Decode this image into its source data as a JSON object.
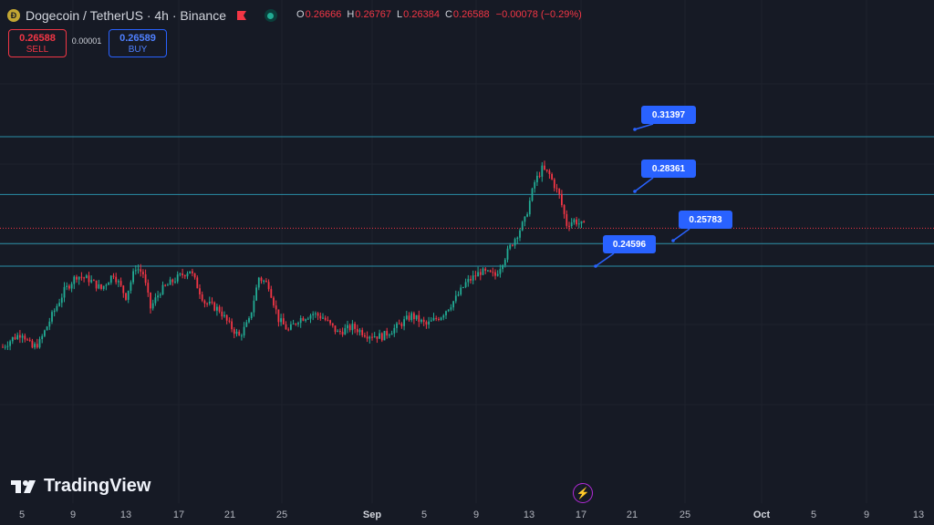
{
  "header": {
    "symbol_title": "Dogecoin / TetherUS · 4h · Binance",
    "coin_icon": "doge-coin-icon",
    "flag_icon": "red-flag-icon",
    "status_icon": "market-open-dot-icon",
    "ohlc": {
      "o_label": "O",
      "o_value": "0.26666",
      "h_label": "H",
      "h_value": "0.26767",
      "l_label": "L",
      "l_value": "0.26384",
      "c_label": "C",
      "c_value": "0.26588",
      "change": "−0.00078 (−0.29%)"
    }
  },
  "trade": {
    "sell_price": "0.26588",
    "sell_label": "SELL",
    "spread": "0.00001",
    "buy_price": "0.26589",
    "buy_label": "BUY"
  },
  "levels": [
    {
      "label": "0.31397",
      "price": 0.31397
    },
    {
      "label": "0.28361",
      "price": 0.28361
    },
    {
      "label": "0.25783",
      "price": 0.25783
    },
    {
      "label": "0.24596",
      "price": 0.24596
    }
  ],
  "brand": {
    "name": "TradingView",
    "logo_icon": "tradingview-logo-icon"
  },
  "bolt_icon": "lightning-bolt-icon",
  "time_axis": [
    {
      "label": "5",
      "major": false
    },
    {
      "label": "9",
      "major": false
    },
    {
      "label": "13",
      "major": false
    },
    {
      "label": "17",
      "major": false
    },
    {
      "label": "21",
      "major": false
    },
    {
      "label": "25",
      "major": false
    },
    {
      "label": "Sep",
      "major": true
    },
    {
      "label": "5",
      "major": false
    },
    {
      "label": "9",
      "major": false
    },
    {
      "label": "13",
      "major": false
    },
    {
      "label": "17",
      "major": false
    },
    {
      "label": "21",
      "major": false
    },
    {
      "label": "25",
      "major": false
    },
    {
      "label": "Oct",
      "major": true
    },
    {
      "label": "5",
      "major": false
    },
    {
      "label": "9",
      "major": false
    },
    {
      "label": "13",
      "major": false
    }
  ],
  "chart_data": {
    "type": "candlestick",
    "symbol": "DOGEUSDT",
    "interval": "4h",
    "current_price": 0.26588,
    "close_path": [
      [
        0,
        0.2035
      ],
      [
        4,
        0.208
      ],
      [
        8,
        0.211
      ],
      [
        10,
        0.2065
      ],
      [
        12,
        0.203
      ],
      [
        15,
        0.206
      ],
      [
        20,
        0.22
      ],
      [
        25,
        0.233
      ],
      [
        30,
        0.241
      ],
      [
        35,
        0.239
      ],
      [
        40,
        0.234
      ],
      [
        45,
        0.242
      ],
      [
        50,
        0.23
      ],
      [
        54,
        0.2455
      ],
      [
        57,
        0.242
      ],
      [
        60,
        0.224
      ],
      [
        64,
        0.233
      ],
      [
        70,
        0.239
      ],
      [
        76,
        0.244
      ],
      [
        82,
        0.227
      ],
      [
        88,
        0.223
      ],
      [
        92,
        0.215
      ],
      [
        96,
        0.209
      ],
      [
        100,
        0.217
      ],
      [
        104,
        0.24
      ],
      [
        108,
        0.236
      ],
      [
        112,
        0.218
      ],
      [
        116,
        0.212
      ],
      [
        120,
        0.218
      ],
      [
        126,
        0.221
      ],
      [
        130,
        0.219
      ],
      [
        136,
        0.211
      ],
      [
        142,
        0.214
      ],
      [
        148,
        0.21
      ],
      [
        154,
        0.209
      ],
      [
        160,
        0.214
      ],
      [
        166,
        0.22
      ],
      [
        172,
        0.215
      ],
      [
        178,
        0.22
      ],
      [
        184,
        0.229
      ],
      [
        188,
        0.237
      ],
      [
        194,
        0.243
      ],
      [
        200,
        0.241
      ],
      [
        206,
        0.256
      ],
      [
        212,
        0.27
      ],
      [
        216,
        0.29
      ],
      [
        219,
        0.297
      ],
      [
        222,
        0.294
      ],
      [
        226,
        0.283
      ],
      [
        229,
        0.268
      ],
      [
        232,
        0.27
      ],
      [
        236,
        0.267
      ]
    ]
  }
}
